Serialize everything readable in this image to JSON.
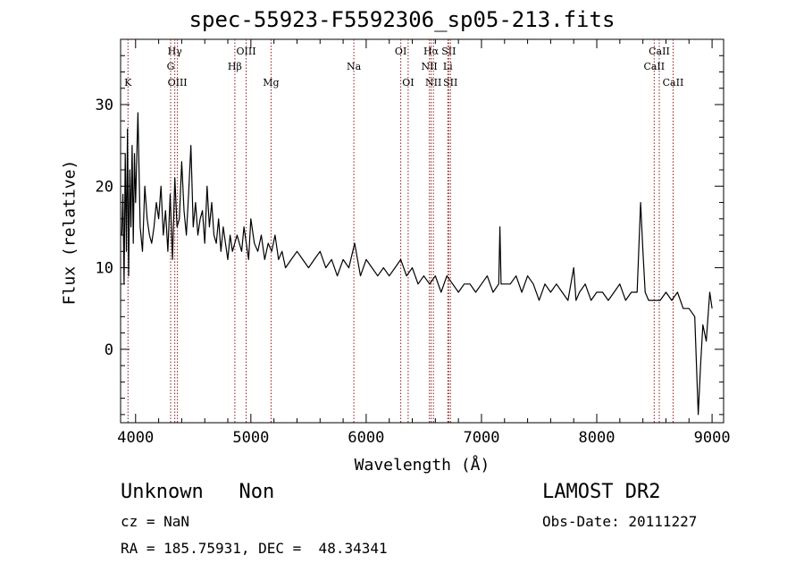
{
  "chart_data": {
    "type": "line",
    "title": "spec-55923-F5592306_sp05-213.fits",
    "xlabel": "Wavelength (Å)",
    "ylabel": "Flux (relative)",
    "xlim": [
      3870,
      9100
    ],
    "ylim": [
      -9,
      38
    ],
    "xticks": [
      4000,
      5000,
      6000,
      7000,
      8000,
      9000
    ],
    "yticks": [
      0,
      10,
      20,
      30
    ],
    "grid": false,
    "series": [
      {
        "x": [
          3880,
          3890,
          3900,
          3910,
          3920,
          3930,
          3940,
          3950,
          3960,
          3970,
          3980,
          3990,
          4000,
          4020,
          4040,
          4060,
          4080,
          4100,
          4120,
          4140,
          4160,
          4180,
          4200,
          4220,
          4240,
          4260,
          4280,
          4300,
          4320,
          4340,
          4360,
          4380,
          4400,
          4420,
          4440,
          4460,
          4480,
          4500,
          4520,
          4540,
          4560,
          4580,
          4600,
          4620,
          4640,
          4660,
          4680,
          4700,
          4720,
          4740,
          4760,
          4780,
          4800,
          4820,
          4840,
          4860,
          4880,
          4900,
          4920,
          4940,
          4960,
          4980,
          5000,
          5030,
          5060,
          5090,
          5120,
          5150,
          5180,
          5210,
          5240,
          5270,
          5300,
          5350,
          5400,
          5450,
          5500,
          5550,
          5600,
          5650,
          5700,
          5750,
          5800,
          5850,
          5900,
          5950,
          6000,
          6050,
          6100,
          6150,
          6200,
          6250,
          6300,
          6350,
          6400,
          6450,
          6500,
          6550,
          6600,
          6650,
          6700,
          6750,
          6800,
          6850,
          6900,
          6950,
          7000,
          7050,
          7100,
          7150,
          7160,
          7170,
          7200,
          7250,
          7300,
          7350,
          7400,
          7450,
          7500,
          7550,
          7600,
          7650,
          7700,
          7750,
          7800,
          7820,
          7850,
          7900,
          7950,
          8000,
          8050,
          8100,
          8150,
          8200,
          8250,
          8300,
          8350,
          8380,
          8400,
          8420,
          8450,
          8500,
          8550,
          8600,
          8650,
          8700,
          8750,
          8800,
          8850,
          8880,
          8900,
          8920,
          8950,
          8980,
          9000
        ],
        "y": [
          14,
          19,
          8,
          24,
          12,
          27,
          9,
          22,
          15,
          25,
          13,
          24,
          18,
          29,
          15,
          12,
          20,
          16,
          14,
          13,
          15,
          18,
          16,
          20,
          14,
          17,
          12,
          19,
          11,
          21,
          15,
          16,
          23,
          17,
          14,
          19,
          25,
          15,
          18,
          14,
          16,
          17,
          13,
          20,
          15,
          18,
          14,
          13,
          16,
          12,
          15,
          13,
          11,
          14,
          12,
          13,
          14,
          13,
          12,
          15,
          13,
          11,
          16,
          13,
          12,
          14,
          11,
          13,
          12,
          14,
          11,
          12,
          10,
          11,
          12,
          11,
          10,
          11,
          12,
          10,
          11,
          9,
          11,
          10,
          13,
          9,
          11,
          10,
          9,
          10,
          9,
          10,
          11,
          9,
          10,
          8,
          9,
          8,
          9,
          7,
          9,
          8,
          7,
          8,
          8,
          7,
          8,
          9,
          7,
          8,
          15,
          8,
          8,
          8,
          9,
          7,
          9,
          8,
          6,
          8,
          7,
          8,
          7,
          6,
          10,
          6,
          7,
          8,
          6,
          7,
          7,
          6,
          7,
          8,
          6,
          7,
          7,
          18,
          12,
          7,
          6,
          6,
          6,
          7,
          6,
          7,
          5,
          5,
          4,
          -8,
          -2,
          3,
          1,
          7,
          5
        ]
      }
    ],
    "lines": [
      {
        "label": "K",
        "x": 3934,
        "row": 2
      },
      {
        "label": "Hγ",
        "x": 4340,
        "row": 0
      },
      {
        "label": "G",
        "x": 4304,
        "row": 1
      },
      {
        "label": "OIII",
        "x": 4363,
        "row": 2
      },
      {
        "label": "OIII",
        "x": 4959,
        "row": 0
      },
      {
        "label": "Hβ",
        "x": 4861,
        "row": 1
      },
      {
        "label": "Mg",
        "x": 5175,
        "row": 2
      },
      {
        "label": "Na",
        "x": 5893,
        "row": 1
      },
      {
        "label": "OI",
        "x": 6300,
        "row": 0
      },
      {
        "label": "OI",
        "x": 6364,
        "row": 2
      },
      {
        "label": "Hα",
        "x": 6563,
        "row": 0
      },
      {
        "label": "SII",
        "x": 6716,
        "row": 0
      },
      {
        "label": "NII",
        "x": 6548,
        "row": 1
      },
      {
        "label": "Li",
        "x": 6708,
        "row": 1
      },
      {
        "label": "NII",
        "x": 6583,
        "row": 2
      },
      {
        "label": "SII",
        "x": 6731,
        "row": 2
      },
      {
        "label": "CaII",
        "x": 8542,
        "row": 0
      },
      {
        "label": "CaII",
        "x": 8498,
        "row": 1
      },
      {
        "label": "CaII",
        "x": 8662,
        "row": 2
      }
    ]
  },
  "info": {
    "class": "Unknown   Non",
    "survey": "LAMOST DR2",
    "cz": "cz = NaN",
    "obs_date": "Obs-Date: 20111227",
    "coords": "RA = 185.75931, DEC =  48.34341"
  },
  "colors": {
    "spectrum": "#000000",
    "lines": "#8b1a1a"
  }
}
